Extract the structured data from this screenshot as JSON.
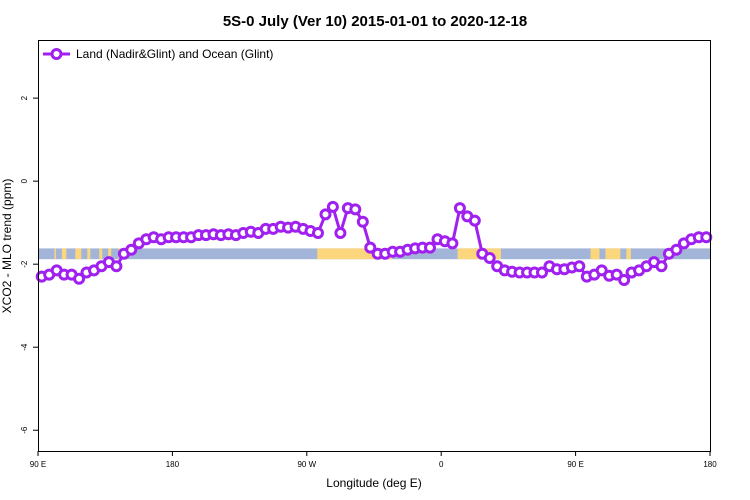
{
  "chart_data": {
    "type": "line",
    "title": "5S-0 July (Ver 10)   2015-01-01 to 2020-12-18",
    "xlabel": "Longitude (deg E)",
    "ylabel": "XCO2 - MLO trend (ppm)",
    "xlim": [
      90,
      540
    ],
    "ylim": [
      -6.5,
      3.4
    ],
    "x_ticks": [
      {
        "value": 90,
        "label": "90 E"
      },
      {
        "value": 180,
        "label": "180"
      },
      {
        "value": 270,
        "label": "90 W"
      },
      {
        "value": 360,
        "label": "0"
      },
      {
        "value": 450,
        "label": "90 E"
      },
      {
        "value": 540,
        "label": "180"
      }
    ],
    "y_ticks": [
      {
        "value": 2,
        "label": "2"
      },
      {
        "value": 0,
        "label": "0"
      },
      {
        "value": -2,
        "label": "-2"
      },
      {
        "value": -4,
        "label": "-4"
      },
      {
        "value": -6,
        "label": "-6"
      }
    ],
    "legend": {
      "position": "top-left",
      "label": "Land (Nadir&Glint) and Ocean (Glint)"
    },
    "colors": {
      "series": "#a020f0",
      "ocean_band": "#a2b5d8",
      "land_band": "#fbd67c"
    },
    "band": {
      "y_top": -1.62,
      "y_bottom": -1.88
    },
    "land_segments": [
      [
        101,
        102
      ],
      [
        106,
        109
      ],
      [
        115,
        119
      ],
      [
        123,
        125
      ],
      [
        131,
        133
      ],
      [
        137,
        139
      ],
      [
        144,
        146
      ],
      [
        148,
        150
      ],
      [
        277,
        327
      ],
      [
        371,
        400
      ],
      [
        460,
        466
      ],
      [
        470,
        480
      ],
      [
        484,
        487
      ]
    ],
    "series": [
      {
        "name": "Land (Nadir&Glint) and Ocean (Glint)",
        "x": [
          92.5,
          97.5,
          102.5,
          107.5,
          112.5,
          117.5,
          122.5,
          127.5,
          132.5,
          137.5,
          142.5,
          147.5,
          152.5,
          157.5,
          162.5,
          167.5,
          172.5,
          177.5,
          182.5,
          187.5,
          192.5,
          197.5,
          202.5,
          207.5,
          212.5,
          217.5,
          222.5,
          227.5,
          232.5,
          237.5,
          242.5,
          247.5,
          252.5,
          257.5,
          262.5,
          267.5,
          272.5,
          277.5,
          282.5,
          287.5,
          292.5,
          297.5,
          302.5,
          307.5,
          312.5,
          317.5,
          322.5,
          327.5,
          332.5,
          337.5,
          342.5,
          347.5,
          352.5,
          357.5,
          362.5,
          367.5,
          372.5,
          377.5,
          382.5,
          387.5,
          392.5,
          397.5,
          402.5,
          407.5,
          412.5,
          417.5,
          422.5,
          427.5,
          432.5,
          437.5,
          442.5,
          447.5,
          452.5,
          457.5,
          462.5,
          467.5,
          472.5,
          477.5,
          482.5,
          487.5,
          492.5,
          497.5,
          502.5,
          507.5,
          512.5,
          517.5,
          522.5,
          527.5,
          532.5,
          537.5
        ],
        "values": [
          -2.3,
          -2.25,
          -2.15,
          -2.25,
          -2.25,
          -2.35,
          -2.2,
          -2.15,
          -2.05,
          -1.95,
          -2.05,
          -1.75,
          -1.65,
          -1.5,
          -1.4,
          -1.35,
          -1.4,
          -1.35,
          -1.35,
          -1.35,
          -1.35,
          -1.3,
          -1.3,
          -1.28,
          -1.3,
          -1.28,
          -1.3,
          -1.25,
          -1.22,
          -1.25,
          -1.15,
          -1.15,
          -1.1,
          -1.12,
          -1.1,
          -1.15,
          -1.2,
          -1.25,
          -0.8,
          -0.62,
          -1.25,
          -0.65,
          -0.68,
          -0.98,
          -1.6,
          -1.75,
          -1.75,
          -1.7,
          -1.7,
          -1.65,
          -1.62,
          -1.6,
          -1.6,
          -1.4,
          -1.45,
          -1.5,
          -0.65,
          -0.85,
          -0.95,
          -1.75,
          -1.85,
          -2.05,
          -2.15,
          -2.18,
          -2.2,
          -2.2,
          -2.2,
          -2.2,
          -2.05,
          -2.12,
          -2.12,
          -2.08,
          -2.05,
          -2.3,
          -2.25,
          -2.15,
          -2.28,
          -2.25,
          -2.38,
          -2.2,
          -2.15,
          -2.05,
          -1.95,
          -2.05,
          -1.75,
          -1.65,
          -1.5,
          -1.4,
          -1.35,
          -1.35
        ]
      }
    ]
  }
}
